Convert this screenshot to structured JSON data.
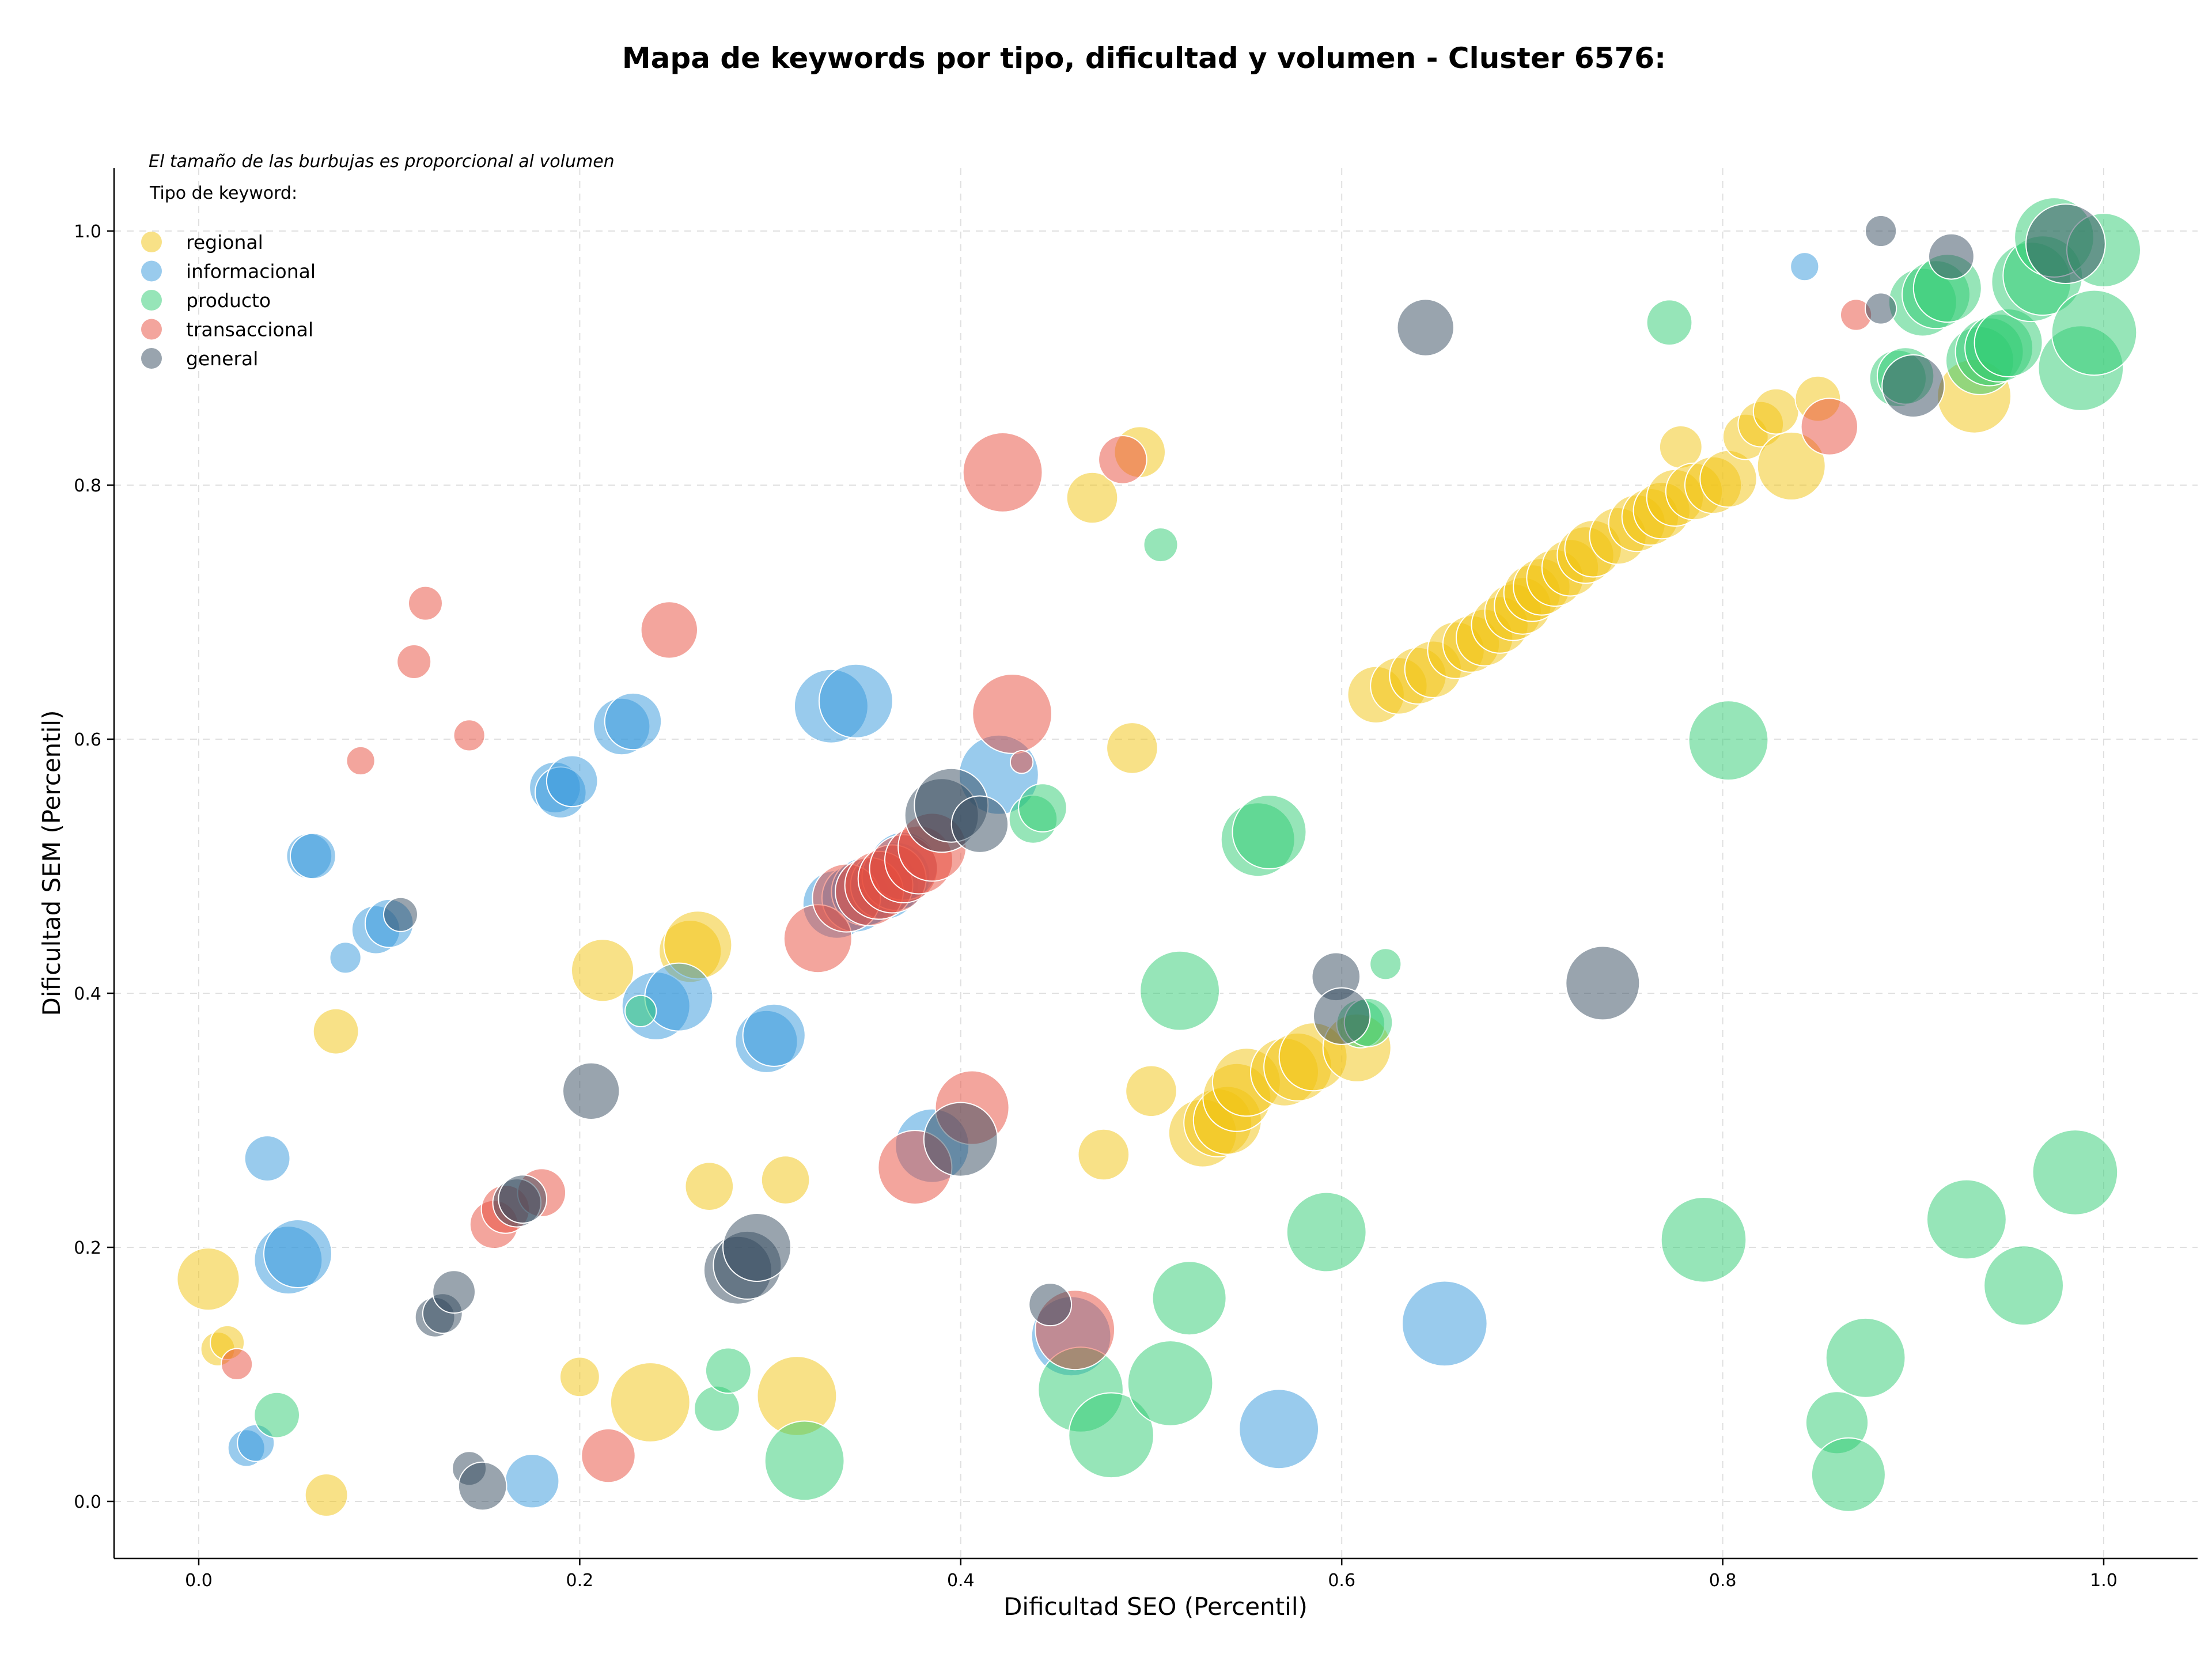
{
  "chart_data": {
    "type": "scatter",
    "title": "Mapa de keywords por tipo, dificultad y volumen - Cluster 6576:",
    "xlabel": "Dificultad SEO (Percentil)",
    "ylabel": "Dificultad SEM (Percentil)",
    "note": "El tamaño de las burbujas es proporcional al volumen",
    "legend_title": "Tipo de keyword:",
    "legend_position": "top-left",
    "grid": true,
    "xlim": [
      -0.045,
      1.05
    ],
    "ylim": [
      -0.045,
      1.05
    ],
    "xticks": [
      "0.0",
      "0.2",
      "0.4",
      "0.6",
      "0.8",
      "1.0"
    ],
    "yticks": [
      "0.0",
      "0.2",
      "0.4",
      "0.6",
      "0.8",
      "1.0"
    ],
    "series": [
      {
        "name": "regional",
        "color": "#f1c40f",
        "points": [
          [
            0.005,
            0.175,
            22
          ],
          [
            0.01,
            0.12,
            12
          ],
          [
            0.015,
            0.125,
            12
          ],
          [
            0.067,
            0.005,
            15
          ],
          [
            0.072,
            0.37,
            16
          ],
          [
            0.2,
            0.098,
            14
          ],
          [
            0.212,
            0.418,
            22
          ],
          [
            0.237,
            0.078,
            28
          ],
          [
            0.258,
            0.433,
            22
          ],
          [
            0.262,
            0.438,
            24
          ],
          [
            0.268,
            0.248,
            17
          ],
          [
            0.308,
            0.253,
            17
          ],
          [
            0.314,
            0.083,
            28
          ],
          [
            0.469,
            0.79,
            18
          ],
          [
            0.475,
            0.273,
            18
          ],
          [
            0.49,
            0.593,
            18
          ],
          [
            0.494,
            0.826,
            18
          ],
          [
            0.5,
            0.323,
            18
          ],
          [
            0.527,
            0.29,
            24
          ],
          [
            0.535,
            0.298,
            24
          ],
          [
            0.54,
            0.3,
            24
          ],
          [
            0.545,
            0.318,
            24
          ],
          [
            0.55,
            0.33,
            24
          ],
          [
            0.57,
            0.338,
            24
          ],
          [
            0.577,
            0.342,
            24
          ],
          [
            0.585,
            0.35,
            24
          ],
          [
            0.608,
            0.357,
            24
          ],
          [
            0.618,
            0.635,
            20
          ],
          [
            0.63,
            0.642,
            20
          ],
          [
            0.64,
            0.65,
            20
          ],
          [
            0.648,
            0.655,
            20
          ],
          [
            0.66,
            0.67,
            20
          ],
          [
            0.668,
            0.675,
            20
          ],
          [
            0.675,
            0.68,
            20
          ],
          [
            0.683,
            0.69,
            20
          ],
          [
            0.69,
            0.7,
            20
          ],
          [
            0.695,
            0.705,
            20
          ],
          [
            0.7,
            0.715,
            20
          ],
          [
            0.705,
            0.72,
            20
          ],
          [
            0.712,
            0.727,
            20
          ],
          [
            0.72,
            0.735,
            20
          ],
          [
            0.728,
            0.745,
            20
          ],
          [
            0.732,
            0.75,
            20
          ],
          [
            0.745,
            0.76,
            20
          ],
          [
            0.755,
            0.77,
            20
          ],
          [
            0.762,
            0.775,
            20
          ],
          [
            0.768,
            0.78,
            20
          ],
          [
            0.775,
            0.79,
            20
          ],
          [
            0.778,
            0.83,
            15
          ],
          [
            0.785,
            0.795,
            20
          ],
          [
            0.795,
            0.8,
            20
          ],
          [
            0.803,
            0.805,
            20
          ],
          [
            0.812,
            0.838,
            16
          ],
          [
            0.82,
            0.848,
            16
          ],
          [
            0.828,
            0.858,
            16
          ],
          [
            0.836,
            0.815,
            24
          ],
          [
            0.85,
            0.868,
            16
          ],
          [
            0.932,
            0.87,
            26
          ]
        ]
      },
      {
        "name": "informacional",
        "color": "#3498db",
        "points": [
          [
            0.025,
            0.042,
            13
          ],
          [
            0.03,
            0.046,
            13
          ],
          [
            0.036,
            0.27,
            16
          ],
          [
            0.047,
            0.19,
            24
          ],
          [
            0.052,
            0.195,
            24
          ],
          [
            0.058,
            0.508,
            16
          ],
          [
            0.06,
            0.508,
            16
          ],
          [
            0.077,
            0.428,
            11
          ],
          [
            0.093,
            0.45,
            17
          ],
          [
            0.1,
            0.455,
            17
          ],
          [
            0.175,
            0.016,
            19
          ],
          [
            0.187,
            0.562,
            18
          ],
          [
            0.19,
            0.558,
            18
          ],
          [
            0.196,
            0.567,
            18
          ],
          [
            0.222,
            0.61,
            20
          ],
          [
            0.228,
            0.614,
            20
          ],
          [
            0.24,
            0.39,
            24
          ],
          [
            0.252,
            0.397,
            24
          ],
          [
            0.298,
            0.362,
            22
          ],
          [
            0.302,
            0.367,
            22
          ],
          [
            0.332,
            0.626,
            26
          ],
          [
            0.345,
            0.63,
            26
          ],
          [
            0.335,
            0.47,
            24
          ],
          [
            0.345,
            0.475,
            24
          ],
          [
            0.35,
            0.48,
            24
          ],
          [
            0.36,
            0.485,
            24
          ],
          [
            0.366,
            0.492,
            24
          ],
          [
            0.37,
            0.5,
            24
          ],
          [
            0.385,
            0.28,
            26
          ],
          [
            0.42,
            0.572,
            28
          ],
          [
            0.458,
            0.13,
            28
          ],
          [
            0.567,
            0.057,
            28
          ],
          [
            0.654,
            0.14,
            30
          ],
          [
            0.843,
            0.972,
            10
          ]
        ]
      },
      {
        "name": "producto",
        "color": "#2ecc71",
        "points": [
          [
            0.041,
            0.068,
            16
          ],
          [
            0.232,
            0.386,
            11
          ],
          [
            0.272,
            0.073,
            16
          ],
          [
            0.278,
            0.103,
            16
          ],
          [
            0.318,
            0.032,
            28
          ],
          [
            0.438,
            0.537,
            17
          ],
          [
            0.443,
            0.546,
            17
          ],
          [
            0.463,
            0.088,
            30
          ],
          [
            0.479,
            0.052,
            30
          ],
          [
            0.505,
            0.753,
            12
          ],
          [
            0.51,
            0.093,
            30
          ],
          [
            0.515,
            0.402,
            28
          ],
          [
            0.52,
            0.16,
            26
          ],
          [
            0.556,
            0.521,
            26
          ],
          [
            0.562,
            0.527,
            26
          ],
          [
            0.592,
            0.212,
            28
          ],
          [
            0.61,
            0.376,
            17
          ],
          [
            0.614,
            0.377,
            17
          ],
          [
            0.623,
            0.423,
            11
          ],
          [
            0.772,
            0.928,
            16
          ],
          [
            0.79,
            0.206,
            30
          ],
          [
            0.803,
            0.599,
            28
          ],
          [
            0.86,
            0.062,
            22
          ],
          [
            0.866,
            0.021,
            26
          ],
          [
            0.875,
            0.113,
            28
          ],
          [
            0.892,
            0.884,
            20
          ],
          [
            0.896,
            0.886,
            20
          ],
          [
            0.905,
            0.944,
            24
          ],
          [
            0.912,
            0.95,
            24
          ],
          [
            0.918,
            0.955,
            24
          ],
          [
            0.928,
            0.222,
            28
          ],
          [
            0.935,
            0.898,
            24
          ],
          [
            0.94,
            0.905,
            24
          ],
          [
            0.945,
            0.908,
            24
          ],
          [
            0.95,
            0.912,
            24
          ],
          [
            0.958,
            0.17,
            28
          ],
          [
            0.962,
            0.96,
            28
          ],
          [
            0.968,
            0.965,
            28
          ],
          [
            0.974,
            0.995,
            28
          ],
          [
            0.985,
            0.259,
            30
          ],
          [
            0.988,
            0.892,
            30
          ],
          [
            0.995,
            0.92,
            30
          ],
          [
            1.0,
            0.985,
            26
          ]
        ]
      },
      {
        "name": "transaccional",
        "color": "#e74c3c",
        "points": [
          [
            0.02,
            0.108,
            11
          ],
          [
            0.085,
            0.583,
            10
          ],
          [
            0.113,
            0.661,
            12
          ],
          [
            0.119,
            0.707,
            12
          ],
          [
            0.142,
            0.603,
            11
          ],
          [
            0.155,
            0.218,
            17
          ],
          [
            0.161,
            0.23,
            17
          ],
          [
            0.18,
            0.243,
            17
          ],
          [
            0.215,
            0.036,
            19
          ],
          [
            0.247,
            0.686,
            20
          ],
          [
            0.325,
            0.443,
            24
          ],
          [
            0.34,
            0.475,
            24
          ],
          [
            0.352,
            0.48,
            24
          ],
          [
            0.357,
            0.485,
            24
          ],
          [
            0.364,
            0.49,
            24
          ],
          [
            0.37,
            0.498,
            24
          ],
          [
            0.378,
            0.505,
            24
          ],
          [
            0.385,
            0.515,
            24
          ],
          [
            0.376,
            0.263,
            26
          ],
          [
            0.406,
            0.31,
            26
          ],
          [
            0.422,
            0.81,
            28
          ],
          [
            0.427,
            0.62,
            28
          ],
          [
            0.432,
            0.582,
            8
          ],
          [
            0.46,
            0.135,
            28
          ],
          [
            0.485,
            0.82,
            17
          ],
          [
            0.856,
            0.846,
            20
          ],
          [
            0.87,
            0.934,
            11
          ]
        ]
      },
      {
        "name": "general",
        "color": "#34495e",
        "points": [
          [
            0.106,
            0.462,
            12
          ],
          [
            0.124,
            0.145,
            14
          ],
          [
            0.128,
            0.148,
            14
          ],
          [
            0.134,
            0.165,
            15
          ],
          [
            0.142,
            0.026,
            12
          ],
          [
            0.149,
            0.012,
            17
          ],
          [
            0.167,
            0.235,
            17
          ],
          [
            0.17,
            0.238,
            17
          ],
          [
            0.206,
            0.323,
            20
          ],
          [
            0.283,
            0.182,
            24
          ],
          [
            0.288,
            0.186,
            24
          ],
          [
            0.293,
            0.2,
            24
          ],
          [
            0.39,
            0.54,
            26
          ],
          [
            0.395,
            0.548,
            26
          ],
          [
            0.4,
            0.285,
            26
          ],
          [
            0.41,
            0.533,
            20
          ],
          [
            0.447,
            0.155,
            15
          ],
          [
            0.597,
            0.413,
            17
          ],
          [
            0.6,
            0.382,
            20
          ],
          [
            0.644,
            0.924,
            20
          ],
          [
            0.737,
            0.408,
            26
          ],
          [
            0.883,
            1.0,
            11
          ],
          [
            0.883,
            0.939,
            11
          ],
          [
            0.9,
            0.878,
            22
          ],
          [
            0.92,
            0.98,
            16
          ],
          [
            0.98,
            0.99,
            28
          ]
        ]
      }
    ]
  }
}
